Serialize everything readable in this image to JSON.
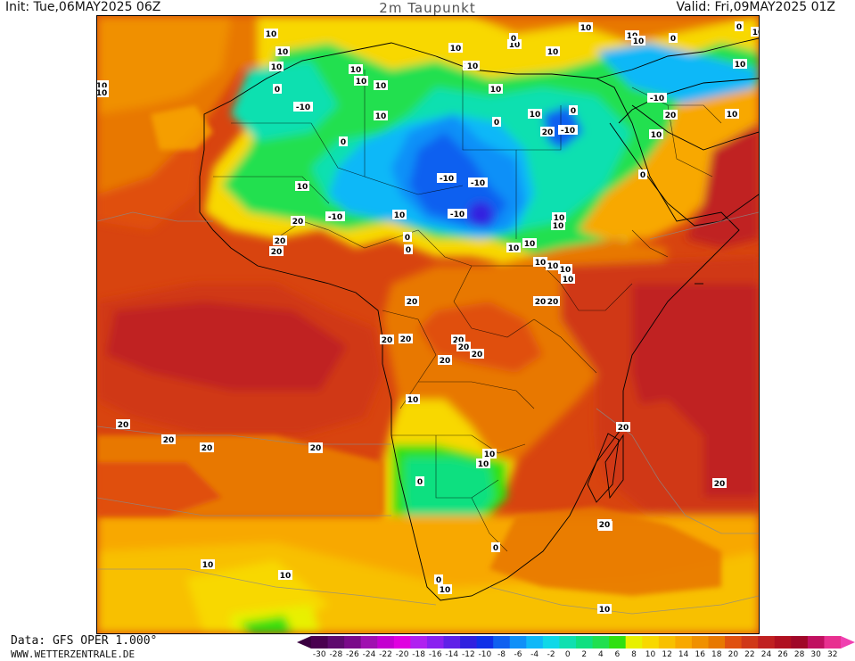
{
  "header": {
    "init": "Init: Tue,06MAY2025 06Z",
    "title": "2m Taupunkt",
    "valid": "Valid: Fri,09MAY2025 01Z"
  },
  "footer": {
    "data_source": "Data: GFS OPER 1.000°",
    "website": "WWW.WETTERZENTRALE.DE"
  },
  "colors": {
    "background": "#d8440f",
    "scale": [
      {
        "v": -30,
        "c": "#4a0050"
      },
      {
        "v": -28,
        "c": "#5e0a6e"
      },
      {
        "v": -26,
        "c": "#7a0a8a"
      },
      {
        "v": -24,
        "c": "#a010b0"
      },
      {
        "v": -22,
        "c": "#c400d0"
      },
      {
        "v": -20,
        "c": "#e000e0"
      },
      {
        "v": -18,
        "c": "#b020f0"
      },
      {
        "v": -16,
        "c": "#8a20f0"
      },
      {
        "v": -14,
        "c": "#6020e8"
      },
      {
        "v": -12,
        "c": "#3020e0"
      },
      {
        "v": -10,
        "c": "#1030e8"
      },
      {
        "v": -8,
        "c": "#1060f0"
      },
      {
        "v": -6,
        "c": "#1090f8"
      },
      {
        "v": -4,
        "c": "#10b8f8"
      },
      {
        "v": -2,
        "c": "#10d8e8"
      },
      {
        "v": 0,
        "c": "#10e0b0"
      },
      {
        "v": 2,
        "c": "#10e080"
      },
      {
        "v": 4,
        "c": "#20e050"
      },
      {
        "v": 6,
        "c": "#30e010"
      },
      {
        "v": 8,
        "c": "#e8f000"
      },
      {
        "v": 10,
        "c": "#f8d800"
      },
      {
        "v": 12,
        "c": "#f8c000"
      },
      {
        "v": 14,
        "c": "#f8a800"
      },
      {
        "v": 16,
        "c": "#f09000"
      },
      {
        "v": 18,
        "c": "#e87800"
      },
      {
        "v": 20,
        "c": "#e05010"
      },
      {
        "v": 22,
        "c": "#d03818"
      },
      {
        "v": 24,
        "c": "#c02020"
      },
      {
        "v": 26,
        "c": "#b01020"
      },
      {
        "v": 28,
        "c": "#a00828"
      },
      {
        "v": 30,
        "c": "#c01060"
      },
      {
        "v": 32,
        "c": "#e83090"
      }
    ],
    "low_arrow": "#3a0040",
    "high_arrow": "#f040b0"
  },
  "colorbar_ticks": [
    "-30",
    "-28",
    "-26",
    "-24",
    "-22",
    "-20",
    "-18",
    "-16",
    "-14",
    "-12",
    "-10",
    "-8",
    "-6",
    "-4",
    "-2",
    "0",
    "2",
    "4",
    "6",
    "8",
    "10",
    "12",
    "14",
    "16",
    "18",
    "20",
    "22",
    "24",
    "26",
    "28",
    "30",
    "32"
  ],
  "contour_labels": {
    "northwest": [
      "10",
      "10",
      "10",
      "10",
      "10",
      "10",
      "10",
      "0",
      "-10",
      "0",
      "10",
      "-10",
      "10",
      "10",
      "20",
      "20",
      "20"
    ],
    "north_central": [
      "10",
      "10",
      "10",
      "10",
      "10",
      "0",
      "-10",
      "-10",
      "-10",
      "10",
      "0",
      "0"
    ],
    "northeast": [
      "0",
      "10",
      "10",
      "10",
      "0",
      "10",
      "0",
      "10",
      "10",
      "10",
      "-10",
      "20",
      "10",
      "0",
      "-10",
      "20",
      "10",
      "0",
      "10"
    ],
    "horn": [
      "10",
      "10",
      "10",
      "10",
      "10",
      "10",
      "10",
      "20",
      "20"
    ],
    "central": [
      "20",
      "20",
      "20",
      "20",
      "20",
      "20",
      "20"
    ],
    "south": [
      "10",
      "10",
      "10",
      "0",
      "0",
      "0",
      "10",
      "20",
      "20",
      "20",
      "20"
    ],
    "atlantic": [
      "20",
      "20",
      "20",
      "20",
      "20",
      "10",
      "10",
      "10"
    ]
  }
}
